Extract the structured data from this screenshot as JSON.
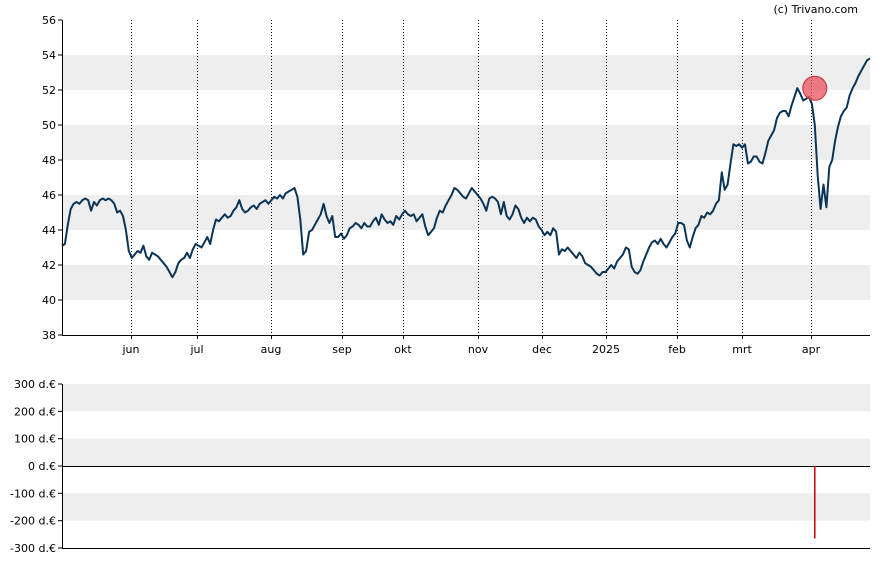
{
  "credit": "(c) Trivano.com",
  "colors": {
    "line": "#0b3556",
    "band": "#eeeeee",
    "marker": "#e8505b",
    "bar": "#cc0000"
  },
  "chart_data": [
    {
      "type": "line",
      "title": "",
      "xlabel": "",
      "ylabel": "",
      "ylim": [
        38,
        56
      ],
      "yticks": [
        "38",
        "40",
        "42",
        "44",
        "46",
        "48",
        "50",
        "52",
        "54",
        "56"
      ],
      "xticks": [
        "jun",
        "jul",
        "aug",
        "sep",
        "okt",
        "nov",
        "dec",
        "2025",
        "feb",
        "mrt",
        "apr"
      ],
      "grid": "vertical dotted lines at month ticks; alternating horizontal bands",
      "series": [
        {
          "values": [
            43.1,
            43.2,
            44.3,
            45.2,
            45.5,
            45.6,
            45.5,
            45.7,
            45.8,
            45.7,
            45.1,
            45.6,
            45.4,
            45.7,
            45.8,
            45.7,
            45.8,
            45.7,
            45.5,
            45.0,
            45.1,
            44.8,
            44.0,
            42.8,
            42.4,
            42.6,
            42.8,
            42.7,
            43.1,
            42.5,
            42.3,
            42.7,
            42.6,
            42.5,
            42.3,
            42.1,
            41.9,
            41.6,
            41.3,
            41.6,
            42.1,
            42.3,
            42.4,
            42.7,
            42.4,
            42.9,
            43.2,
            43.1,
            43.0,
            43.3,
            43.6,
            43.2,
            44.0,
            44.6,
            44.5,
            44.7,
            44.9,
            44.7,
            44.8,
            45.1,
            45.3,
            45.7,
            45.2,
            45.0,
            45.1,
            45.3,
            45.4,
            45.2,
            45.5,
            45.6,
            45.7,
            45.5,
            45.7,
            45.9,
            45.8,
            46.0,
            45.8,
            46.1,
            46.2,
            46.3,
            46.4,
            45.9,
            44.6,
            42.6,
            42.8,
            43.9,
            44.0,
            44.3,
            44.6,
            44.9,
            45.5,
            44.8,
            44.4,
            44.8,
            43.6,
            43.6,
            43.8,
            43.5,
            43.7,
            44.1,
            44.2,
            44.4,
            44.3,
            44.1,
            44.4,
            44.2,
            44.2,
            44.5,
            44.7,
            44.3,
            44.9,
            44.6,
            44.4,
            44.5,
            44.3,
            44.8,
            44.6,
            44.9,
            45.1,
            44.9,
            44.8,
            44.9,
            44.5,
            44.7,
            44.9,
            44.2,
            43.7,
            43.9,
            44.1,
            44.7,
            45.1,
            45.0,
            45.4,
            45.7,
            46.0,
            46.4,
            46.3,
            46.1,
            45.9,
            45.8,
            46.1,
            46.4,
            46.2,
            46.0,
            45.8,
            45.5,
            45.1,
            45.8,
            45.9,
            45.8,
            45.6,
            44.9,
            45.6,
            44.8,
            44.6,
            44.9,
            45.4,
            45.2,
            44.7,
            44.4,
            44.7,
            44.5,
            44.7,
            44.6,
            44.2,
            44.0,
            43.7,
            43.9,
            43.7,
            44.1,
            43.9,
            42.6,
            42.9,
            42.8,
            43.0,
            42.8,
            42.6,
            42.4,
            42.7,
            42.5,
            42.1,
            42.0,
            41.9,
            41.7,
            41.5,
            41.4,
            41.6,
            41.6,
            41.8,
            42.0,
            41.8,
            42.2,
            42.4,
            42.6,
            43.0,
            42.9,
            41.9,
            41.6,
            41.5,
            41.7,
            42.2,
            42.6,
            43.0,
            43.3,
            43.4,
            43.2,
            43.5,
            43.2,
            43.0,
            43.3,
            43.6,
            43.8,
            44.4,
            44.4,
            44.3,
            43.4,
            43.0,
            43.6,
            44.1,
            44.3,
            44.8,
            44.7,
            45.0,
            44.9,
            45.1,
            45.5,
            45.7,
            47.3,
            46.3,
            46.6,
            47.8,
            48.9,
            48.8,
            48.9,
            48.7,
            48.9,
            47.8,
            47.9,
            48.2,
            48.2,
            47.9,
            47.8,
            48.4,
            49.1,
            49.4,
            49.7,
            50.4,
            50.7,
            50.8,
            50.8,
            50.5,
            51.1,
            51.6,
            52.1,
            51.8,
            51.4,
            51.5,
            51.6,
            51.2,
            50.0,
            47.1,
            45.2,
            46.6,
            45.3,
            47.6,
            48.0,
            49.1,
            49.9,
            50.5,
            50.8,
            51.0,
            51.7,
            52.1,
            52.4,
            52.8,
            53.1,
            53.4,
            53.7,
            53.8
          ]
        }
      ],
      "marker": {
        "label": "",
        "index": 259,
        "value": 52.1
      }
    },
    {
      "type": "bar",
      "title": "",
      "xlabel": "",
      "ylabel": "",
      "ylim": [
        -300,
        300
      ],
      "yticks": [
        "300 d.€",
        "200 d.€",
        "100 d.€",
        "0 d.€",
        "-100 d.€",
        "-200 d.€",
        "-300 d.€"
      ],
      "bars": [
        {
          "index": 259,
          "value": -265
        }
      ]
    }
  ]
}
